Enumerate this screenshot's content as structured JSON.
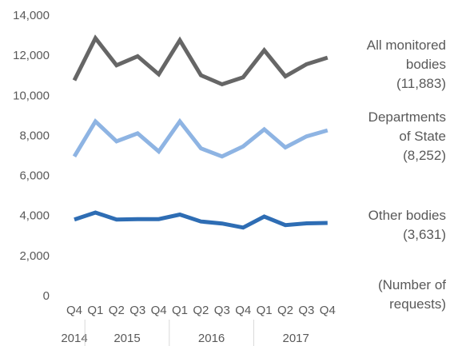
{
  "chart_data": {
    "type": "line",
    "x": [
      "Q4",
      "Q1",
      "Q2",
      "Q3",
      "Q4",
      "Q1",
      "Q2",
      "Q3",
      "Q4",
      "Q1",
      "Q2",
      "Q3",
      "Q4"
    ],
    "years": [
      {
        "label": "2014",
        "start": 0,
        "end": 0
      },
      {
        "label": "2015",
        "start": 1,
        "end": 4
      },
      {
        "label": "2016",
        "start": 5,
        "end": 8
      },
      {
        "label": "2017",
        "start": 9,
        "end": 12
      }
    ],
    "ylim": [
      0,
      14000
    ],
    "yticks": [
      0,
      2000,
      4000,
      6000,
      8000,
      10000,
      12000,
      14000
    ],
    "ytick_labels": [
      "0",
      "2,000",
      "4,000",
      "6,000",
      "8,000",
      "10,000",
      "12,000",
      "14,000"
    ],
    "unit_label": [
      "(Number of",
      "requests)"
    ],
    "grid": false,
    "legend": "none",
    "series": [
      {
        "label_lines": [
          "All monitored",
          "bodies",
          "(11,883)"
        ],
        "color": "#666666",
        "values": [
          10750,
          12850,
          11500,
          11950,
          11050,
          12750,
          11000,
          10550,
          10900,
          12250,
          10950,
          11550,
          11883
        ]
      },
      {
        "label_lines": [
          "Departments",
          "of State",
          "(8,252)"
        ],
        "color": "#8eb4e3",
        "values": [
          6950,
          8700,
          7700,
          8100,
          7200,
          8700,
          7350,
          6950,
          7450,
          8300,
          7400,
          7950,
          8252
        ]
      },
      {
        "label_lines": [
          "Other bodies",
          "(3,631)"
        ],
        "color": "#2e6db4",
        "values": [
          3800,
          4150,
          3800,
          3820,
          3820,
          4050,
          3700,
          3600,
          3400,
          3950,
          3520,
          3610,
          3631
        ]
      }
    ]
  }
}
